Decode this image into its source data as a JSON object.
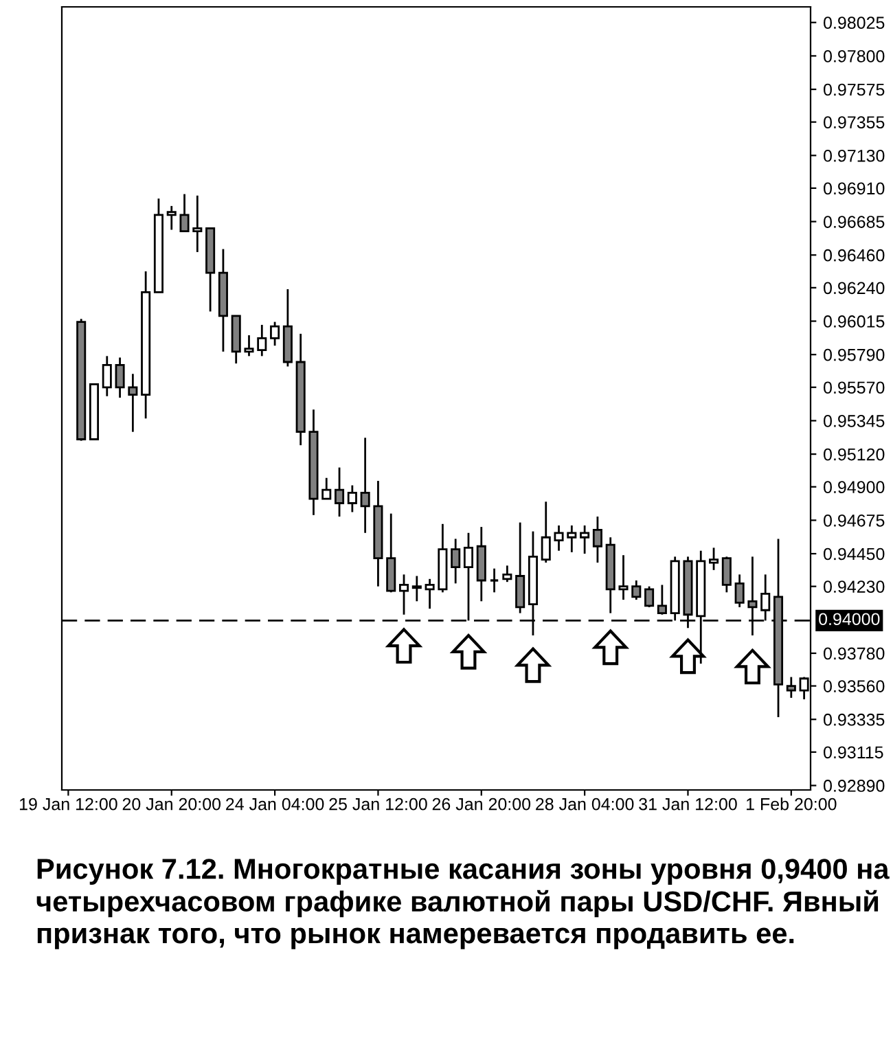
{
  "chart_data": {
    "type": "candlestick",
    "categories": [
      "19 Jan 12:00",
      null,
      null,
      null,
      null,
      null,
      null,
      null,
      "20 Jan 20:00",
      null,
      null,
      null,
      null,
      null,
      null,
      null,
      "24 Jan 04:00",
      null,
      null,
      null,
      null,
      null,
      null,
      null,
      "25 Jan 12:00",
      null,
      null,
      null,
      null,
      null,
      null,
      null,
      "26 Jan 20:00",
      null,
      null,
      null,
      null,
      null,
      null,
      null,
      "28 Jan 04:00",
      null,
      null,
      null,
      null,
      null,
      null,
      null,
      "31 Jan 12:00",
      null,
      null,
      null,
      null,
      null,
      null,
      null,
      "1 Feb 20:00",
      null
    ],
    "ohlc": [
      null,
      [
        0.9601,
        0.9603,
        0.9521,
        0.9522
      ],
      [
        0.9522,
        0.9559,
        0.9522,
        0.9559
      ],
      [
        0.9557,
        0.9578,
        0.9551,
        0.9572
      ],
      [
        0.9572,
        0.9577,
        0.955,
        0.9557
      ],
      [
        0.9557,
        0.9566,
        0.9527,
        0.9552
      ],
      [
        0.9552,
        0.9635,
        0.9536,
        0.9621
      ],
      [
        0.9621,
        0.9684,
        0.9621,
        0.9673
      ],
      [
        0.9673,
        0.9679,
        0.9663,
        0.9675
      ],
      [
        0.9673,
        0.9687,
        0.9662,
        0.9662
      ],
      [
        0.9662,
        0.9686,
        0.9648,
        0.9664
      ],
      [
        0.9664,
        0.9664,
        0.9608,
        0.9634
      ],
      [
        0.9634,
        0.965,
        0.9581,
        0.9605
      ],
      [
        0.9605,
        0.9605,
        0.9573,
        0.9581
      ],
      [
        0.9581,
        0.9592,
        0.9578,
        0.9583
      ],
      [
        0.9582,
        0.9599,
        0.9578,
        0.959
      ],
      [
        0.959,
        0.9601,
        0.9585,
        0.9598
      ],
      [
        0.9598,
        0.9623,
        0.9571,
        0.9574
      ],
      [
        0.9574,
        0.9593,
        0.9518,
        0.9527
      ],
      [
        0.9527,
        0.9542,
        0.9471,
        0.9482
      ],
      [
        0.9482,
        0.9496,
        0.9482,
        0.9488
      ],
      [
        0.9488,
        0.9503,
        0.947,
        0.9479
      ],
      [
        0.9479,
        0.9491,
        0.9473,
        0.9486
      ],
      [
        0.9486,
        0.9523,
        0.9459,
        0.9477
      ],
      [
        0.9477,
        0.9494,
        0.9423,
        0.9442
      ],
      [
        0.9442,
        0.9472,
        0.9419,
        0.942
      ],
      [
        0.942,
        0.9431,
        0.9404,
        0.9424
      ],
      [
        0.9422,
        0.943,
        0.9413,
        0.9423
      ],
      [
        0.9421,
        0.9428,
        0.9408,
        0.9424
      ],
      [
        0.9421,
        0.9465,
        0.9419,
        0.9448
      ],
      [
        0.9448,
        0.9455,
        0.9425,
        0.9436
      ],
      [
        0.9436,
        0.9459,
        0.94,
        0.9449
      ],
      [
        0.945,
        0.9463,
        0.9413,
        0.9427
      ],
      [
        0.9427,
        0.9435,
        0.9419,
        0.9427
      ],
      [
        0.9428,
        0.9437,
        0.9426,
        0.9431
      ],
      [
        0.943,
        0.9466,
        0.9405,
        0.9409
      ],
      [
        0.9411,
        0.946,
        0.939,
        0.9443
      ],
      [
        0.9441,
        0.948,
        0.9439,
        0.9456
      ],
      [
        0.9454,
        0.9464,
        0.9447,
        0.9459
      ],
      [
        0.9456,
        0.9464,
        0.9446,
        0.9459
      ],
      [
        0.9456,
        0.9464,
        0.9445,
        0.9459
      ],
      [
        0.9461,
        0.947,
        0.9439,
        0.945
      ],
      [
        0.9451,
        0.9456,
        0.9405,
        0.9421
      ],
      [
        0.9421,
        0.9444,
        0.9414,
        0.9423
      ],
      [
        0.9423,
        0.9427,
        0.9414,
        0.9416
      ],
      [
        0.9421,
        0.9423,
        0.9409,
        0.941
      ],
      [
        0.941,
        0.9424,
        0.9404,
        0.9405
      ],
      [
        0.9405,
        0.9443,
        0.94,
        0.944
      ],
      [
        0.944,
        0.9443,
        0.9395,
        0.9404
      ],
      [
        0.9403,
        0.9447,
        0.9371,
        0.944
      ],
      [
        0.9439,
        0.9449,
        0.9434,
        0.9441
      ],
      [
        0.9442,
        0.9443,
        0.9419,
        0.9424
      ],
      [
        0.9425,
        0.9431,
        0.9409,
        0.9412
      ],
      [
        0.9413,
        0.9443,
        0.939,
        0.9409
      ],
      [
        0.9407,
        0.9431,
        0.94,
        0.9418
      ],
      [
        0.9416,
        0.9455,
        0.9335,
        0.9357
      ],
      [
        0.9356,
        0.9362,
        0.9348,
        0.9353
      ],
      [
        0.9353,
        0.9362,
        0.9347,
        0.9361
      ]
    ],
    "colors": [
      null,
      "#808080",
      "#ffffff",
      "#ffffff",
      "#808080",
      "#808080",
      "#ffffff",
      "#ffffff",
      "#ffffff",
      "#808080",
      "#ffffff",
      "#808080",
      "#808080",
      "#808080",
      "#ffffff",
      "#ffffff",
      "#ffffff",
      "#808080",
      "#808080",
      "#808080",
      "#ffffff",
      "#808080",
      "#ffffff",
      "#808080",
      "#808080",
      "#808080",
      "#ffffff",
      "#ffffff",
      "#ffffff",
      "#ffffff",
      "#808080",
      "#ffffff",
      "#808080",
      "#000000",
      "#ffffff",
      "#808080",
      "#ffffff",
      "#ffffff",
      "#ffffff",
      "#ffffff",
      "#ffffff",
      "#808080",
      "#808080",
      "#ffffff",
      "#808080",
      "#808080",
      "#808080",
      "#ffffff",
      "#808080",
      "#ffffff",
      "#ffffff",
      "#808080",
      "#808080",
      "#808080",
      "#ffffff",
      "#808080",
      "#808080",
      "#ffffff"
    ],
    "ylim": [
      0.9286,
      0.9813
    ],
    "yticks": [
      {
        "value": 0.98025,
        "label": "0.98025"
      },
      {
        "value": 0.978,
        "label": "0.97800"
      },
      {
        "value": 0.97575,
        "label": "0.97575"
      },
      {
        "value": 0.97355,
        "label": "0.97355"
      },
      {
        "value": 0.9713,
        "label": "0.97130"
      },
      {
        "value": 0.9691,
        "label": "0.96910"
      },
      {
        "value": 0.96685,
        "label": "0.96685"
      },
      {
        "value": 0.9646,
        "label": "0.96460"
      },
      {
        "value": 0.9624,
        "label": "0.96240"
      },
      {
        "value": 0.96015,
        "label": "0.96015"
      },
      {
        "value": 0.9579,
        "label": "0.95790"
      },
      {
        "value": 0.9557,
        "label": "0.95570"
      },
      {
        "value": 0.95345,
        "label": "0.95345"
      },
      {
        "value": 0.9512,
        "label": "0.95120"
      },
      {
        "value": 0.949,
        "label": "0.94900"
      },
      {
        "value": 0.94675,
        "label": "0.94675"
      },
      {
        "value": 0.9445,
        "label": "0.94450"
      },
      {
        "value": 0.9423,
        "label": "0.94230"
      },
      {
        "value": 0.9378,
        "label": "0.93780"
      },
      {
        "value": 0.9356,
        "label": "0.93560"
      },
      {
        "value": 0.93335,
        "label": "0.93335"
      },
      {
        "value": 0.93115,
        "label": "0.93115"
      },
      {
        "value": 0.9289,
        "label": "0.92890"
      }
    ],
    "ref_lines": [
      {
        "axis": "y",
        "value": 0.94,
        "label": "0.94000",
        "color": "#000000",
        "line_style": "dashed"
      }
    ],
    "grid": false,
    "legend": false,
    "annotations": [
      "Рисунок 7.12. Многократные касания зоны уровня 0,9400 на четырехчасовом графике валютной пары USD/CHF. Явный признак того, что рынок намеревается продавить ее."
    ]
  }
}
